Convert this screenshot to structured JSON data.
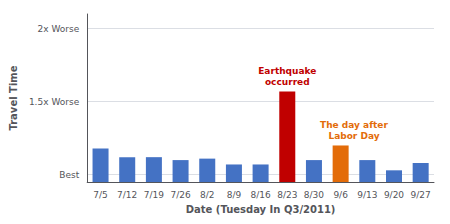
{
  "chart_data": {
    "type": "bar",
    "categories": [
      "7/5",
      "7/12",
      "7/19",
      "7/26",
      "8/2",
      "8/9",
      "8/16",
      "8/23",
      "8/30",
      "9/6",
      "9/13",
      "9/20",
      "9/27"
    ],
    "values": [
      1.18,
      1.12,
      1.12,
      1.1,
      1.11,
      1.07,
      1.07,
      1.57,
      1.1,
      1.2,
      1.1,
      1.03,
      1.08
    ],
    "colors": [
      "#4472C4",
      "#4472C4",
      "#4472C4",
      "#4472C4",
      "#4472C4",
      "#4472C4",
      "#4472C4",
      "#C00000",
      "#4472C4",
      "#E36C09",
      "#4472C4",
      "#4472C4",
      "#4472C4"
    ],
    "xlabel": "Date (Tuesday In Q3/2011)",
    "ylabel": "Travel Time",
    "ylim": [
      0.95,
      2.1
    ],
    "yticks": [
      {
        "value": 1.0,
        "label": "Best"
      },
      {
        "value": 1.5,
        "label": "1.5x Worse"
      },
      {
        "value": 2.0,
        "label": "2x Worse"
      }
    ],
    "grid": true,
    "annotations": [
      {
        "text": "Earthquake\noccurred",
        "category": "8/23",
        "color": "#C00000"
      },
      {
        "text": "The day after\nLabor Day",
        "category": "9/6",
        "color": "#E36C09"
      }
    ]
  }
}
